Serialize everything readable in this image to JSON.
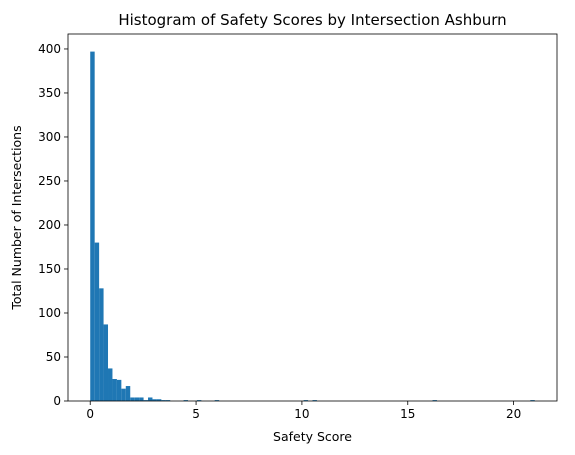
{
  "chart_data": {
    "type": "bar",
    "subtype": "histogram",
    "title": "Histogram of Safety Scores by Intersection Ashburn",
    "xlabel": "Safety Score",
    "ylabel": "Total Number of Intersections",
    "xlim": [
      -1.05,
      22.05
    ],
    "ylim": [
      0,
      417
    ],
    "xticks": [
      0,
      5,
      10,
      15,
      20
    ],
    "yticks": [
      0,
      50,
      100,
      150,
      200,
      250,
      300,
      350,
      400
    ],
    "bin_width": 0.21,
    "bar_color": "#1f77b4",
    "grid": false,
    "legend": "none",
    "bins": [
      {
        "x0": 0.0,
        "count": 397
      },
      {
        "x0": 0.21,
        "count": 180
      },
      {
        "x0": 0.42,
        "count": 128
      },
      {
        "x0": 0.63,
        "count": 87
      },
      {
        "x0": 0.84,
        "count": 37
      },
      {
        "x0": 1.05,
        "count": 25
      },
      {
        "x0": 1.26,
        "count": 24
      },
      {
        "x0": 1.47,
        "count": 14
      },
      {
        "x0": 1.68,
        "count": 17
      },
      {
        "x0": 1.89,
        "count": 4
      },
      {
        "x0": 2.1,
        "count": 4
      },
      {
        "x0": 2.31,
        "count": 4
      },
      {
        "x0": 2.52,
        "count": 1
      },
      {
        "x0": 2.73,
        "count": 4
      },
      {
        "x0": 2.94,
        "count": 2
      },
      {
        "x0": 3.15,
        "count": 2
      },
      {
        "x0": 3.36,
        "count": 1
      },
      {
        "x0": 3.57,
        "count": 1
      },
      {
        "x0": 4.41,
        "count": 1
      },
      {
        "x0": 5.04,
        "count": 1
      },
      {
        "x0": 5.88,
        "count": 1
      },
      {
        "x0": 10.08,
        "count": 1
      },
      {
        "x0": 10.5,
        "count": 1
      },
      {
        "x0": 16.17,
        "count": 1
      },
      {
        "x0": 20.79,
        "count": 1
      }
    ]
  }
}
